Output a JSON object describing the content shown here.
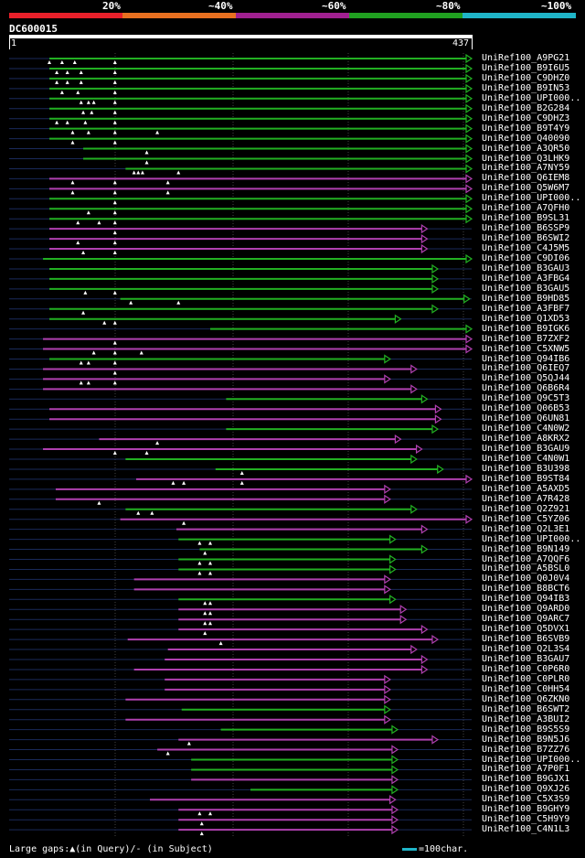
{
  "scale": {
    "labels": [
      "20%",
      "~40%",
      "~60%",
      "~80%",
      "~100%"
    ],
    "colors": [
      "#e8202a",
      "#e87020",
      "#a02090",
      "#20a020",
      "#1fb5c8"
    ]
  },
  "query": {
    "id": "DC600015",
    "start": "1",
    "end": "437",
    "length": 437
  },
  "legend": {
    "gaps": "Large gaps:▲(in Query)/- (in Subject)",
    "scale": "=100char."
  },
  "hits": [
    {
      "name": "UniRef100_A9PG21",
      "c": "g",
      "s": 38,
      "e": 437,
      "m": [
        38,
        50,
        62,
        100
      ]
    },
    {
      "name": "UniRef100_B9I6U5",
      "c": "g",
      "s": 38,
      "e": 437,
      "m": [
        45,
        55,
        68,
        100
      ]
    },
    {
      "name": "UniRef100_C9DHZ0",
      "c": "g",
      "s": 38,
      "e": 437,
      "m": [
        45,
        55,
        68,
        100
      ]
    },
    {
      "name": "UniRef100_B9IN53",
      "c": "g",
      "s": 38,
      "e": 437,
      "m": [
        50,
        65,
        100
      ]
    },
    {
      "name": "UniRef100_UPI000..",
      "c": "g",
      "s": 38,
      "e": 437,
      "m": [
        68,
        75,
        80,
        100
      ]
    },
    {
      "name": "UniRef100_B2G284",
      "c": "g",
      "s": 38,
      "e": 437,
      "m": [
        70,
        78,
        100
      ]
    },
    {
      "name": "UniRef100_C9DHZ3",
      "c": "g",
      "s": 38,
      "e": 437,
      "m": [
        45,
        55,
        72,
        100
      ]
    },
    {
      "name": "UniRef100_B9T4Y9",
      "c": "g",
      "s": 38,
      "e": 437,
      "m": [
        60,
        75,
        100,
        140
      ]
    },
    {
      "name": "UniRef100_Q40090",
      "c": "g",
      "s": 38,
      "e": 437,
      "m": [
        60,
        100
      ]
    },
    {
      "name": "UniRef100_A3QR50",
      "c": "g",
      "s": 70,
      "e": 437,
      "m": [
        130
      ]
    },
    {
      "name": "UniRef100_Q3LHK9",
      "c": "g",
      "s": 70,
      "e": 437,
      "m": [
        130
      ]
    },
    {
      "name": "UniRef100_A7NY59",
      "c": "g",
      "s": 110,
      "e": 437,
      "m": [
        118,
        122,
        126,
        160
      ]
    },
    {
      "name": "UniRef100_Q6IEM8",
      "c": "m",
      "s": 38,
      "e": 437,
      "m": [
        60,
        100,
        150
      ]
    },
    {
      "name": "UniRef100_Q5W6M7",
      "c": "m",
      "s": 38,
      "e": 437,
      "m": [
        60,
        100,
        150
      ]
    },
    {
      "name": "UniRef100_UPI000..",
      "c": "g",
      "s": 38,
      "e": 437,
      "m": [
        100
      ]
    },
    {
      "name": "UniRef100_A7QFH0",
      "c": "g",
      "s": 38,
      "e": 437,
      "m": [
        75,
        100
      ]
    },
    {
      "name": "UniRef100_B9SL31",
      "c": "g",
      "s": 38,
      "e": 437,
      "m": [
        65,
        85,
        100
      ]
    },
    {
      "name": "UniRef100_B6SSP9",
      "c": "m",
      "s": 38,
      "e": 395,
      "m": [
        100
      ]
    },
    {
      "name": "UniRef100_B6SWI2",
      "c": "m",
      "s": 38,
      "e": 395,
      "m": [
        65,
        100
      ]
    },
    {
      "name": "UniRef100_C4J5M5",
      "c": "m",
      "s": 38,
      "e": 395,
      "m": [
        70,
        100
      ]
    },
    {
      "name": "UniRef100_C9DI06",
      "c": "g",
      "s": 32,
      "e": 437,
      "m": []
    },
    {
      "name": "UniRef100_B3GAU3",
      "c": "g",
      "s": 38,
      "e": 405,
      "m": []
    },
    {
      "name": "UniRef100_A3FBG4",
      "c": "g",
      "s": 38,
      "e": 405,
      "m": []
    },
    {
      "name": "UniRef100_B3GAU5",
      "c": "g",
      "s": 38,
      "e": 405,
      "m": [
        72,
        100
      ]
    },
    {
      "name": "UniRef100_B9HD85",
      "c": "g",
      "s": 105,
      "e": 435,
      "m": [
        115,
        160
      ]
    },
    {
      "name": "UniRef100_A3FBF7",
      "c": "g",
      "s": 38,
      "e": 405,
      "m": [
        70
      ]
    },
    {
      "name": "UniRef100_Q1XD53",
      "c": "g",
      "s": 38,
      "e": 370,
      "m": [
        90,
        100
      ]
    },
    {
      "name": "UniRef100_B9IGK6",
      "c": "g",
      "s": 190,
      "e": 437,
      "m": []
    },
    {
      "name": "UniRef100_B7ZXF2",
      "c": "m",
      "s": 32,
      "e": 437,
      "m": [
        100
      ]
    },
    {
      "name": "UniRef100_C5XNW5",
      "c": "m",
      "s": 32,
      "e": 437,
      "m": [
        80,
        100,
        125
      ]
    },
    {
      "name": "UniRef100_Q94IB6",
      "c": "g",
      "s": 38,
      "e": 360,
      "m": [
        68,
        75,
        100
      ]
    },
    {
      "name": "UniRef100_Q6IEQ7",
      "c": "m",
      "s": 32,
      "e": 385,
      "m": [
        100
      ]
    },
    {
      "name": "UniRef100_Q5QJ44",
      "c": "m",
      "s": 32,
      "e": 360,
      "m": [
        68,
        75,
        100
      ]
    },
    {
      "name": "UniRef100_Q6B6R4",
      "c": "m",
      "s": 32,
      "e": 385,
      "m": []
    },
    {
      "name": "UniRef100_Q9C5T3",
      "c": "g",
      "s": 205,
      "e": 395,
      "m": []
    },
    {
      "name": "UniRef100_Q06B53",
      "c": "m",
      "s": 38,
      "e": 408,
      "m": []
    },
    {
      "name": "UniRef100_Q6UN81",
      "c": "m",
      "s": 38,
      "e": 408,
      "m": []
    },
    {
      "name": "UniRef100_C4N0W2",
      "c": "g",
      "s": 205,
      "e": 405,
      "m": []
    },
    {
      "name": "UniRef100_A8KRX2",
      "c": "m",
      "s": 85,
      "e": 370,
      "m": [
        140
      ]
    },
    {
      "name": "UniRef100_B3GAU9",
      "c": "m",
      "s": 32,
      "e": 390,
      "m": [
        100,
        130
      ]
    },
    {
      "name": "UniRef100_C4N0W1",
      "c": "g",
      "s": 110,
      "e": 385,
      "m": []
    },
    {
      "name": "UniRef100_B3U398",
      "c": "g",
      "s": 195,
      "e": 410,
      "m": [
        220
      ]
    },
    {
      "name": "UniRef100_B9ST84",
      "c": "m",
      "s": 120,
      "e": 437,
      "m": [
        155,
        165,
        220
      ]
    },
    {
      "name": "UniRef100_A5AXD5",
      "c": "m",
      "s": 44,
      "e": 360,
      "m": []
    },
    {
      "name": "UniRef100_A7R428",
      "c": "m",
      "s": 44,
      "e": 360,
      "m": [
        85
      ]
    },
    {
      "name": "UniRef100_Q2Z921",
      "c": "g",
      "s": 110,
      "e": 385,
      "m": [
        122,
        135
      ]
    },
    {
      "name": "UniRef100_C5YZ06",
      "c": "m",
      "s": 105,
      "e": 437,
      "m": [
        165
      ]
    },
    {
      "name": "UniRef100_Q2L3E1",
      "c": "m",
      "s": 158,
      "e": 395,
      "m": []
    },
    {
      "name": "UniRef100_UPI000..",
      "c": "g",
      "s": 160,
      "e": 365,
      "m": [
        180,
        190
      ]
    },
    {
      "name": "UniRef100_B9N149",
      "c": "g",
      "s": 180,
      "e": 395,
      "m": [
        185
      ]
    },
    {
      "name": "UniRef100_A7QQF6",
      "c": "g",
      "s": 160,
      "e": 365,
      "m": [
        180,
        190
      ]
    },
    {
      "name": "UniRef100_A5BSL0",
      "c": "g",
      "s": 160,
      "e": 365,
      "m": [
        180,
        190
      ]
    },
    {
      "name": "UniRef100_Q0J0V4",
      "c": "m",
      "s": 118,
      "e": 360,
      "m": []
    },
    {
      "name": "UniRef100_B8BCT6",
      "c": "m",
      "s": 118,
      "e": 360,
      "m": []
    },
    {
      "name": "UniRef100_Q94IB3",
      "c": "g",
      "s": 160,
      "e": 365,
      "m": [
        185,
        190
      ]
    },
    {
      "name": "UniRef100_Q9ARD0",
      "c": "m",
      "s": 160,
      "e": 375,
      "m": [
        185,
        190
      ]
    },
    {
      "name": "UniRef100_Q9ARC7",
      "c": "m",
      "s": 160,
      "e": 375,
      "m": [
        185,
        190
      ]
    },
    {
      "name": "UniRef100_Q5DVX1",
      "c": "m",
      "s": 160,
      "e": 395,
      "m": [
        185
      ]
    },
    {
      "name": "UniRef100_B6SVB9",
      "c": "m",
      "s": 112,
      "e": 405,
      "m": [
        200
      ]
    },
    {
      "name": "UniRef100_Q2L3S4",
      "c": "m",
      "s": 150,
      "e": 385,
      "m": []
    },
    {
      "name": "UniRef100_B3GAU7",
      "c": "m",
      "s": 147,
      "e": 395,
      "m": []
    },
    {
      "name": "UniRef100_C0P6R0",
      "c": "m",
      "s": 118,
      "e": 395,
      "m": []
    },
    {
      "name": "UniRef100_C0PLR0",
      "c": "m",
      "s": 147,
      "e": 360,
      "m": []
    },
    {
      "name": "UniRef100_C0HH54",
      "c": "m",
      "s": 147,
      "e": 360,
      "m": []
    },
    {
      "name": "UniRef100_Q6ZKN0",
      "c": "m",
      "s": 110,
      "e": 360,
      "m": []
    },
    {
      "name": "UniRef100_B6SWT2",
      "c": "g",
      "s": 163,
      "e": 360,
      "m": []
    },
    {
      "name": "UniRef100_A3BUI2",
      "c": "m",
      "s": 110,
      "e": 360,
      "m": []
    },
    {
      "name": "UniRef100_B9S5S9",
      "c": "g",
      "s": 200,
      "e": 367,
      "m": []
    },
    {
      "name": "UniRef100_B9N5J6",
      "c": "m",
      "s": 160,
      "e": 405,
      "m": [
        170
      ]
    },
    {
      "name": "UniRef100_B7ZZ76",
      "c": "m",
      "s": 140,
      "e": 367,
      "m": [
        150
      ]
    },
    {
      "name": "UniRef100_UPI000..",
      "c": "g",
      "s": 172,
      "e": 367,
      "m": []
    },
    {
      "name": "UniRef100_A7P0F1",
      "c": "g",
      "s": 172,
      "e": 367,
      "m": []
    },
    {
      "name": "UniRef100_B9GJX1",
      "c": "m",
      "s": 172,
      "e": 367,
      "m": []
    },
    {
      "name": "UniRef100_Q9XJ26",
      "c": "g",
      "s": 228,
      "e": 367,
      "m": []
    },
    {
      "name": "UniRef100_C5X3S9",
      "c": "m",
      "s": 133,
      "e": 365,
      "m": []
    },
    {
      "name": "UniRef100_B9GHY9",
      "c": "m",
      "s": 160,
      "e": 367,
      "m": [
        180,
        190
      ]
    },
    {
      "name": "UniRef100_C5H9Y9",
      "c": "m",
      "s": 160,
      "e": 367,
      "m": [
        182
      ]
    },
    {
      "name": "UniRef100_C4N1L3",
      "c": "m",
      "s": 160,
      "e": 367,
      "m": [
        182
      ]
    }
  ]
}
